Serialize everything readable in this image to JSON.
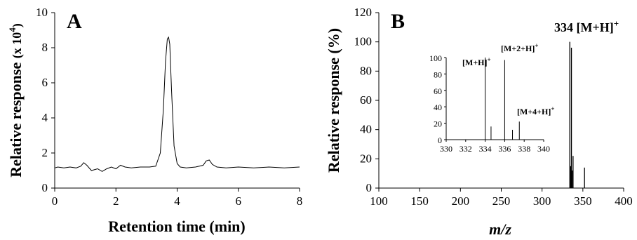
{
  "chart_data": [
    {
      "type": "line",
      "panel_label": "A",
      "xlabel": "Retention time (min)",
      "ylabel_main": "Relative response",
      "ylabel_unit": "(x 10",
      "ylabel_exp": "4",
      "ylabel_close": ")",
      "xlim": [
        0,
        8
      ],
      "ylim": [
        0,
        10
      ],
      "xticks": [
        "0",
        "2",
        "4",
        "6",
        "8"
      ],
      "yticks": [
        "0",
        "2",
        "4",
        "6",
        "8",
        "10"
      ],
      "series": [
        {
          "x": [
            0,
            0.1,
            0.3,
            0.5,
            0.7,
            0.85,
            0.95,
            1.05,
            1.2,
            1.4,
            1.55,
            1.7,
            1.85,
            2.0,
            2.15,
            2.3,
            2.5,
            2.8,
            3.1,
            3.3,
            3.45,
            3.55,
            3.62,
            3.68,
            3.72,
            3.76,
            3.82,
            3.9,
            4.0,
            4.1,
            4.3,
            4.6,
            4.85,
            4.95,
            5.05,
            5.15,
            5.3,
            5.6,
            6.0,
            6.5,
            7.0,
            7.5,
            8.0
          ],
          "y": [
            1.15,
            1.2,
            1.15,
            1.2,
            1.15,
            1.25,
            1.45,
            1.3,
            1.0,
            1.1,
            0.95,
            1.1,
            1.2,
            1.1,
            1.3,
            1.2,
            1.15,
            1.2,
            1.2,
            1.25,
            2.0,
            4.5,
            7.2,
            8.5,
            8.6,
            8.2,
            5.5,
            2.4,
            1.4,
            1.2,
            1.15,
            1.2,
            1.3,
            1.55,
            1.6,
            1.35,
            1.2,
            1.15,
            1.2,
            1.15,
            1.2,
            1.15,
            1.2
          ]
        }
      ]
    },
    {
      "type": "bar",
      "panel_label": "B",
      "xlabel": "m/z",
      "ylabel": "Relative response (%)",
      "xlim": [
        100,
        400
      ],
      "ylim": [
        0,
        120
      ],
      "xticks": [
        "100",
        "150",
        "200",
        "250",
        "300",
        "350",
        "400"
      ],
      "yticks": [
        "0",
        "20",
        "40",
        "60",
        "80",
        "100",
        "120"
      ],
      "x": [
        334,
        335,
        336,
        337,
        338,
        352
      ],
      "values": [
        100,
        15,
        96,
        12,
        22,
        14
      ],
      "peak_label_value": "334",
      "peak_label_ion": "[M+H]",
      "peak_label_charge": "+",
      "inset": {
        "type": "bar",
        "xlim": [
          330,
          340
        ],
        "ylim": [
          0,
          100
        ],
        "xticks": [
          "330",
          "332",
          "334",
          "336",
          "338",
          "340"
        ],
        "yticks": [
          "0",
          "20",
          "40",
          "60",
          "80",
          "100"
        ],
        "x": [
          334,
          334.6,
          336,
          336.8,
          337.5
        ],
        "values": [
          100,
          16,
          97,
          12,
          22
        ],
        "annotations": [
          {
            "text": "[M+H]",
            "charge": "+"
          },
          {
            "text": "[M+2+H]",
            "charge": "+"
          },
          {
            "text": "[M+4+H]",
            "charge": "+"
          }
        ]
      }
    }
  ]
}
